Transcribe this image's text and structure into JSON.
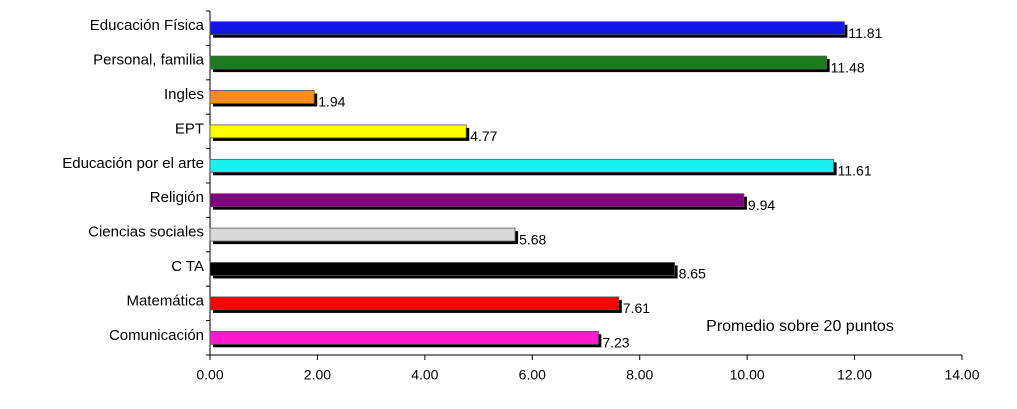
{
  "chart_data": {
    "type": "bar",
    "orientation": "horizontal",
    "annotation": "Promedio sobre 20 puntos",
    "categories": [
      "Educación Física",
      "Personal, familia",
      "Ingles",
      "EPT",
      "Educación por el arte",
      "Religión",
      "Ciencias sociales",
      "C TA",
      "Matemática",
      "Comunicación"
    ],
    "values": [
      11.81,
      11.48,
      1.94,
      4.77,
      11.61,
      9.94,
      5.68,
      8.65,
      7.61,
      7.23
    ],
    "colors": [
      "#1414e6",
      "#1b7d1b",
      "#ff8c1a",
      "#ffff00",
      "#19f0f0",
      "#800080",
      "#d9d9d9",
      "#000000",
      "#ff0000",
      "#ff19d0"
    ],
    "xlim": [
      0,
      14
    ],
    "xticks": [
      {
        "value": 0,
        "label": "0.00"
      },
      {
        "value": 2,
        "label": "2.00"
      },
      {
        "value": 4,
        "label": "4.00"
      },
      {
        "value": 6,
        "label": "6.00"
      },
      {
        "value": 8,
        "label": "8.00"
      },
      {
        "value": 10,
        "label": "10.00"
      },
      {
        "value": 12,
        "label": "12.00"
      },
      {
        "value": 14,
        "label": "14.00"
      }
    ]
  }
}
